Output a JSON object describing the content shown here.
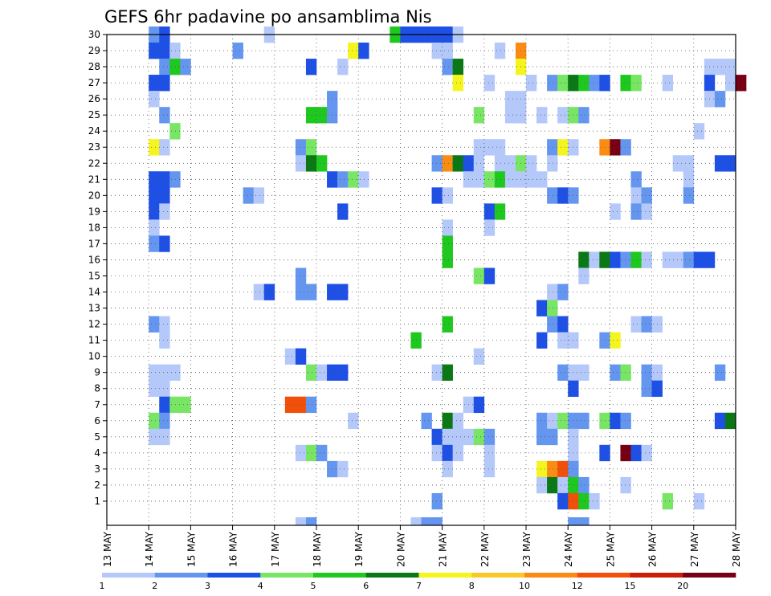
{
  "chart_data": {
    "type": "heatmap",
    "title": "GEFS 6hr padavine po ansamblima Nis",
    "x_axis": {
      "kind": "time",
      "range": [
        "13 MAY",
        "28 MAY"
      ],
      "steps_per_day": 4,
      "tick_labels": [
        "13 MAY",
        "14 MAY",
        "15 MAY",
        "16 MAY",
        "17 MAY",
        "18 MAY",
        "19 MAY",
        "20 MAY",
        "21 MAY",
        "22 MAY",
        "23 MAY",
        "24 MAY",
        "25 MAY",
        "26 MAY",
        "27 MAY",
        "28 MAY"
      ]
    },
    "y_axis": {
      "label": "",
      "range": [
        0,
        30
      ],
      "tick_labels": [
        "1",
        "2",
        "3",
        "4",
        "5",
        "6",
        "7",
        "8",
        "9",
        "10",
        "11",
        "12",
        "13",
        "14",
        "15",
        "16",
        "17",
        "18",
        "19",
        "20",
        "21",
        "22",
        "23",
        "24",
        "25",
        "26",
        "27",
        "28",
        "29",
        "30"
      ]
    },
    "grid": true,
    "colorbar": {
      "placement": "bottom",
      "labels": [
        "1",
        "2",
        "3",
        "4",
        "5",
        "6",
        "7",
        "8",
        "10",
        "12",
        "15",
        "20"
      ],
      "colors": [
        "#b4c8fa",
        "#6496f0",
        "#1e50e6",
        "#78e664",
        "#1ec81e",
        "#0a7814",
        "#f5f51e",
        "#fac828",
        "#fa8c14",
        "#f0500a",
        "#c81e0a",
        "#780014"
      ]
    },
    "cell_encoding": "each cell = [day_offset_from_13_MAY_in_6h_steps, member, color_class]",
    "cells": [
      [
        4,
        30,
        1
      ],
      [
        5,
        30,
        2
      ],
      [
        15,
        30,
        0
      ],
      [
        27,
        30,
        4
      ],
      [
        28,
        30,
        2
      ],
      [
        29,
        30,
        2
      ],
      [
        30,
        30,
        2
      ],
      [
        31,
        30,
        2
      ],
      [
        32,
        30,
        2
      ],
      [
        33,
        30,
        0
      ],
      [
        4,
        29,
        2
      ],
      [
        5,
        29,
        2
      ],
      [
        6,
        29,
        0
      ],
      [
        12,
        29,
        1
      ],
      [
        23,
        29,
        6
      ],
      [
        24,
        29,
        2
      ],
      [
        31,
        29,
        0
      ],
      [
        32,
        29,
        0
      ],
      [
        37,
        29,
        0
      ],
      [
        39,
        29,
        8
      ],
      [
        5,
        28,
        1
      ],
      [
        6,
        28,
        4
      ],
      [
        7,
        28,
        1
      ],
      [
        19,
        28,
        2
      ],
      [
        22,
        28,
        0
      ],
      [
        32,
        28,
        1
      ],
      [
        33,
        28,
        5
      ],
      [
        39,
        28,
        6
      ],
      [
        57,
        28,
        0
      ],
      [
        58,
        28,
        0
      ],
      [
        59,
        28,
        0
      ],
      [
        4,
        27,
        2
      ],
      [
        5,
        27,
        2
      ],
      [
        33,
        27,
        6
      ],
      [
        36,
        27,
        0
      ],
      [
        40,
        27,
        0
      ],
      [
        42,
        27,
        1
      ],
      [
        43,
        27,
        3
      ],
      [
        44,
        27,
        5
      ],
      [
        45,
        27,
        4
      ],
      [
        46,
        27,
        1
      ],
      [
        47,
        27,
        2
      ],
      [
        49,
        27,
        4
      ],
      [
        50,
        27,
        3
      ],
      [
        53,
        27,
        0
      ],
      [
        57,
        27,
        2
      ],
      [
        59,
        27,
        0
      ],
      [
        60,
        27,
        11
      ],
      [
        4,
        26,
        0
      ],
      [
        21,
        26,
        1
      ],
      [
        38,
        26,
        0
      ],
      [
        39,
        26,
        0
      ],
      [
        57,
        26,
        0
      ],
      [
        58,
        26,
        1
      ],
      [
        5,
        25,
        1
      ],
      [
        19,
        25,
        4
      ],
      [
        20,
        25,
        4
      ],
      [
        21,
        25,
        1
      ],
      [
        35,
        25,
        3
      ],
      [
        38,
        25,
        0
      ],
      [
        39,
        25,
        0
      ],
      [
        41,
        25,
        0
      ],
      [
        43,
        25,
        0
      ],
      [
        44,
        25,
        3
      ],
      [
        45,
        25,
        1
      ],
      [
        6,
        24,
        3
      ],
      [
        56,
        24,
        0
      ],
      [
        4,
        23,
        6
      ],
      [
        5,
        23,
        0
      ],
      [
        18,
        23,
        1
      ],
      [
        19,
        23,
        3
      ],
      [
        35,
        23,
        0
      ],
      [
        36,
        23,
        0
      ],
      [
        37,
        23,
        0
      ],
      [
        42,
        23,
        1
      ],
      [
        43,
        23,
        6
      ],
      [
        44,
        23,
        0
      ],
      [
        47,
        23,
        8
      ],
      [
        48,
        23,
        11
      ],
      [
        49,
        23,
        1
      ],
      [
        18,
        22,
        0
      ],
      [
        19,
        22,
        5
      ],
      [
        20,
        22,
        4
      ],
      [
        31,
        22,
        1
      ],
      [
        32,
        22,
        8
      ],
      [
        33,
        22,
        5
      ],
      [
        34,
        22,
        2
      ],
      [
        35,
        22,
        0
      ],
      [
        37,
        22,
        0
      ],
      [
        38,
        22,
        0
      ],
      [
        39,
        22,
        3
      ],
      [
        40,
        22,
        0
      ],
      [
        42,
        22,
        0
      ],
      [
        54,
        22,
        0
      ],
      [
        55,
        22,
        0
      ],
      [
        58,
        22,
        2
      ],
      [
        59,
        22,
        2
      ],
      [
        4,
        21,
        2
      ],
      [
        5,
        21,
        2
      ],
      [
        6,
        21,
        1
      ],
      [
        21,
        21,
        2
      ],
      [
        22,
        21,
        1
      ],
      [
        23,
        21,
        3
      ],
      [
        24,
        21,
        0
      ],
      [
        34,
        21,
        0
      ],
      [
        35,
        21,
        0
      ],
      [
        36,
        21,
        3
      ],
      [
        37,
        21,
        4
      ],
      [
        38,
        21,
        0
      ],
      [
        39,
        21,
        0
      ],
      [
        40,
        21,
        0
      ],
      [
        41,
        21,
        0
      ],
      [
        50,
        21,
        1
      ],
      [
        55,
        21,
        0
      ],
      [
        4,
        20,
        2
      ],
      [
        5,
        20,
        2
      ],
      [
        13,
        20,
        1
      ],
      [
        14,
        20,
        0
      ],
      [
        31,
        20,
        2
      ],
      [
        32,
        20,
        0
      ],
      [
        42,
        20,
        1
      ],
      [
        43,
        20,
        2
      ],
      [
        44,
        20,
        1
      ],
      [
        50,
        20,
        0
      ],
      [
        51,
        20,
        1
      ],
      [
        55,
        20,
        1
      ],
      [
        4,
        19,
        2
      ],
      [
        5,
        19,
        0
      ],
      [
        22,
        19,
        2
      ],
      [
        36,
        19,
        2
      ],
      [
        37,
        19,
        4
      ],
      [
        48,
        19,
        0
      ],
      [
        50,
        19,
        1
      ],
      [
        51,
        19,
        0
      ],
      [
        4,
        18,
        0
      ],
      [
        32,
        18,
        0
      ],
      [
        36,
        18,
        0
      ],
      [
        4,
        17,
        1
      ],
      [
        5,
        17,
        2
      ],
      [
        32,
        17,
        4
      ],
      [
        32,
        16,
        4
      ],
      [
        45,
        16,
        5
      ],
      [
        46,
        16,
        0
      ],
      [
        47,
        16,
        5
      ],
      [
        48,
        16,
        2
      ],
      [
        49,
        16,
        1
      ],
      [
        50,
        16,
        4
      ],
      [
        51,
        16,
        0
      ],
      [
        53,
        16,
        0
      ],
      [
        54,
        16,
        0
      ],
      [
        55,
        16,
        1
      ],
      [
        56,
        16,
        2
      ],
      [
        57,
        16,
        2
      ],
      [
        18,
        15,
        1
      ],
      [
        35,
        15,
        3
      ],
      [
        36,
        15,
        2
      ],
      [
        45,
        15,
        0
      ],
      [
        14,
        14,
        0
      ],
      [
        15,
        14,
        2
      ],
      [
        18,
        14,
        1
      ],
      [
        19,
        14,
        1
      ],
      [
        21,
        14,
        2
      ],
      [
        22,
        14,
        2
      ],
      [
        42,
        14,
        0
      ],
      [
        43,
        14,
        1
      ],
      [
        41,
        13,
        2
      ],
      [
        42,
        13,
        3
      ],
      [
        4,
        12,
        1
      ],
      [
        5,
        12,
        0
      ],
      [
        32,
        12,
        4
      ],
      [
        42,
        12,
        1
      ],
      [
        43,
        12,
        2
      ],
      [
        50,
        12,
        0
      ],
      [
        51,
        12,
        1
      ],
      [
        52,
        12,
        0
      ],
      [
        5,
        11,
        0
      ],
      [
        29,
        11,
        4
      ],
      [
        41,
        11,
        2
      ],
      [
        43,
        11,
        0
      ],
      [
        44,
        11,
        0
      ],
      [
        47,
        11,
        1
      ],
      [
        48,
        11,
        6
      ],
      [
        17,
        10,
        0
      ],
      [
        18,
        10,
        2
      ],
      [
        35,
        10,
        0
      ],
      [
        4,
        9,
        0
      ],
      [
        5,
        9,
        0
      ],
      [
        6,
        9,
        0
      ],
      [
        19,
        9,
        3
      ],
      [
        20,
        9,
        0
      ],
      [
        21,
        9,
        2
      ],
      [
        22,
        9,
        2
      ],
      [
        31,
        9,
        0
      ],
      [
        32,
        9,
        5
      ],
      [
        43,
        9,
        1
      ],
      [
        44,
        9,
        0
      ],
      [
        45,
        9,
        0
      ],
      [
        48,
        9,
        1
      ],
      [
        49,
        9,
        3
      ],
      [
        51,
        9,
        1
      ],
      [
        52,
        9,
        0
      ],
      [
        58,
        9,
        1
      ],
      [
        4,
        8,
        0
      ],
      [
        5,
        8,
        0
      ],
      [
        44,
        8,
        2
      ],
      [
        51,
        8,
        1
      ],
      [
        52,
        8,
        2
      ],
      [
        5,
        7,
        2
      ],
      [
        6,
        7,
        3
      ],
      [
        7,
        7,
        3
      ],
      [
        17,
        7,
        9
      ],
      [
        18,
        7,
        9
      ],
      [
        19,
        7,
        1
      ],
      [
        34,
        7,
        0
      ],
      [
        35,
        7,
        2
      ],
      [
        4,
        6,
        3
      ],
      [
        5,
        6,
        1
      ],
      [
        23,
        6,
        0
      ],
      [
        30,
        6,
        1
      ],
      [
        32,
        6,
        5
      ],
      [
        33,
        6,
        0
      ],
      [
        41,
        6,
        1
      ],
      [
        42,
        6,
        0
      ],
      [
        43,
        6,
        3
      ],
      [
        44,
        6,
        1
      ],
      [
        45,
        6,
        1
      ],
      [
        47,
        6,
        3
      ],
      [
        48,
        6,
        2
      ],
      [
        49,
        6,
        1
      ],
      [
        58,
        6,
        2
      ],
      [
        59,
        6,
        5
      ],
      [
        4,
        5,
        0
      ],
      [
        5,
        5,
        0
      ],
      [
        31,
        5,
        2
      ],
      [
        32,
        5,
        0
      ],
      [
        33,
        5,
        0
      ],
      [
        34,
        5,
        0
      ],
      [
        35,
        5,
        3
      ],
      [
        36,
        5,
        1
      ],
      [
        41,
        5,
        1
      ],
      [
        42,
        5,
        1
      ],
      [
        44,
        5,
        0
      ],
      [
        18,
        4,
        0
      ],
      [
        19,
        4,
        3
      ],
      [
        20,
        4,
        1
      ],
      [
        31,
        4,
        0
      ],
      [
        32,
        4,
        2
      ],
      [
        33,
        4,
        0
      ],
      [
        36,
        4,
        0
      ],
      [
        44,
        4,
        0
      ],
      [
        47,
        4,
        2
      ],
      [
        49,
        4,
        11
      ],
      [
        50,
        4,
        2
      ],
      [
        51,
        4,
        0
      ],
      [
        21,
        3,
        1
      ],
      [
        22,
        3,
        0
      ],
      [
        32,
        3,
        0
      ],
      [
        36,
        3,
        0
      ],
      [
        41,
        3,
        6
      ],
      [
        42,
        3,
        8
      ],
      [
        43,
        3,
        9
      ],
      [
        44,
        3,
        1
      ],
      [
        41,
        2,
        0
      ],
      [
        42,
        2,
        5
      ],
      [
        43,
        2,
        0
      ],
      [
        44,
        2,
        4
      ],
      [
        45,
        2,
        1
      ],
      [
        49,
        2,
        0
      ],
      [
        31,
        1,
        1
      ],
      [
        43,
        1,
        2
      ],
      [
        44,
        1,
        9
      ],
      [
        45,
        1,
        4
      ],
      [
        46,
        1,
        0
      ],
      [
        53,
        1,
        3
      ],
      [
        56,
        1,
        0
      ],
      [
        18,
        0,
        0
      ],
      [
        19,
        0,
        1
      ],
      [
        29,
        0,
        0
      ],
      [
        30,
        0,
        1
      ],
      [
        31,
        0,
        1
      ],
      [
        44,
        0,
        1
      ],
      [
        45,
        0,
        1
      ]
    ]
  }
}
